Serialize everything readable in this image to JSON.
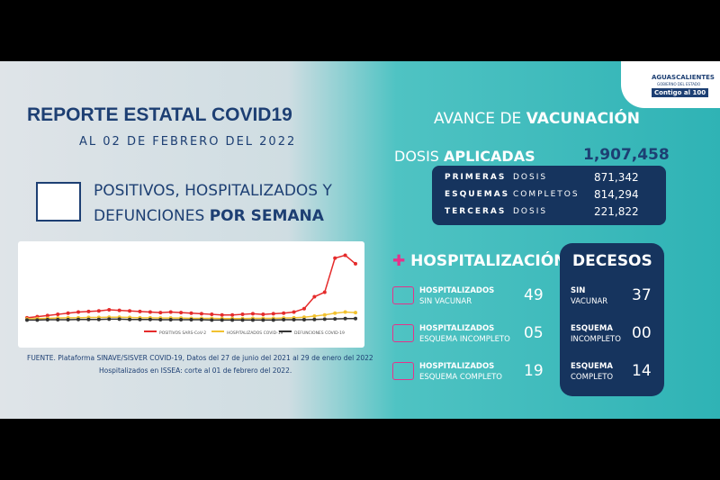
{
  "header": {
    "title": "REPORTE ESTATAL COVID19",
    "date": "AL 02 DE FEBRERO DEL 2022"
  },
  "logo": {
    "state": "AGUASCALIENTES",
    "gov": "GOBIERNO DEL ESTADO",
    "slogan": "Contigo al 100"
  },
  "weekly": {
    "heading_1": "POSITIVOS, HOSPITALIZADOS Y",
    "heading_2a": "DEFUNCIONES ",
    "heading_2b": "POR SEMANA",
    "chart": {
      "type": "line",
      "ylim": [
        0,
        260
      ],
      "series": [
        {
          "name": "POSITIVOS SARS-CoV-2",
          "color": "#e52b2b",
          "values": [
            10,
            14,
            18,
            22,
            26,
            30,
            32,
            34,
            38,
            36,
            34,
            32,
            30,
            28,
            30,
            28,
            26,
            24,
            22,
            20,
            20,
            22,
            24,
            22,
            24,
            26,
            30,
            42,
            84,
            100,
            220,
            230,
            200
          ]
        },
        {
          "name": "HOSPITALIZADOS COVID-19",
          "color": "#f2c230",
          "values": [
            6,
            7,
            8,
            9,
            10,
            10,
            11,
            11,
            12,
            12,
            11,
            10,
            10,
            9,
            9,
            9,
            8,
            8,
            8,
            7,
            7,
            7,
            8,
            8,
            8,
            9,
            10,
            12,
            16,
            20,
            26,
            30,
            28
          ]
        },
        {
          "name": "DEFUNCIONES COVID-19",
          "color": "#333333",
          "values": [
            2,
            2,
            3,
            3,
            3,
            4,
            4,
            4,
            5,
            5,
            4,
            4,
            4,
            3,
            3,
            3,
            3,
            3,
            2,
            2,
            2,
            2,
            2,
            2,
            2,
            3,
            3,
            3,
            4,
            5,
            6,
            7,
            7
          ]
        }
      ]
    }
  },
  "source": {
    "line_1": "FUENTE. Plataforma SINAVE/SISVER COVID-19, Datos del 27 de junio del 2021 al 29 de enero del 2022",
    "line_2": "Hospitalizados en ISSEA: corte al 01 de febrero del 2022."
  },
  "vaccination": {
    "title_a": "AVANCE DE ",
    "title_b": "VACUNACIÓN",
    "applied_a": "DOSIS ",
    "applied_b": "APLICADAS",
    "total": "1,907,458",
    "rows": [
      {
        "bold": "PRIMERAS",
        "rest": " DOSIS",
        "value": "871,342"
      },
      {
        "bold": "ESQUEMAS",
        "rest": " COMPLETOS",
        "value": "814,294"
      },
      {
        "bold": "TERCERAS",
        "rest": " DOSIS",
        "value": "221,822"
      }
    ]
  },
  "hospitalization": {
    "title": "HOSPITALIZACIÓN",
    "rows": [
      {
        "line_1": "HOSPITALIZADOS",
        "line_2": "SIN VACUNAR",
        "value": "49"
      },
      {
        "line_1": "HOSPITALIZADOS",
        "line_2": "ESQUEMA INCOMPLETO",
        "value": "05"
      },
      {
        "line_1": "HOSPITALIZADOS",
        "line_2": "ESQUEMA COMPLETO",
        "value": "19"
      }
    ]
  },
  "deaths": {
    "title": "DECESOS",
    "rows": [
      {
        "line_1": "SIN",
        "line_2": "VACUNAR",
        "value": "37"
      },
      {
        "line_1": "ESQUEMA",
        "line_2": "INCOMPLETO",
        "value": "00"
      },
      {
        "line_1": "ESQUEMA",
        "line_2": "COMPLETO",
        "value": "14"
      }
    ]
  }
}
